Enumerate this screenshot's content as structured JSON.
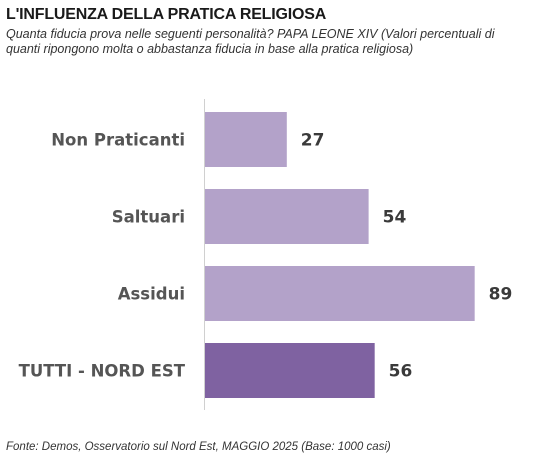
{
  "title": "L'INFLUENZA DELLA PRATICA RELIGIOSA",
  "subtitle": "Quanta fiducia prova nelle seguenti personalità? PAPA LEONE XIV (Valori percentuali di quanti ripongono molta o abbastanza fiducia in base alla pratica religiosa)",
  "source": "Fonte: Demos, Osservatorio sul Nord Est, MAGGIO 2025 (Base: 1000 casi)",
  "colors": {
    "bar": "#b3a2c9",
    "bar_highlight": "#7f62a1",
    "axis": "#d0d0d0"
  },
  "chart_data": {
    "type": "bar",
    "orientation": "horizontal",
    "categories": [
      "Non Praticanti",
      "Saltuari",
      "Assidui",
      "TUTTI - NORD EST"
    ],
    "values": [
      27,
      54,
      89,
      56
    ],
    "value_labels": [
      "27",
      "54",
      "89",
      "56"
    ],
    "highlight_index": 3,
    "xlim": [
      0,
      100
    ],
    "grid": false,
    "legend": "none"
  }
}
